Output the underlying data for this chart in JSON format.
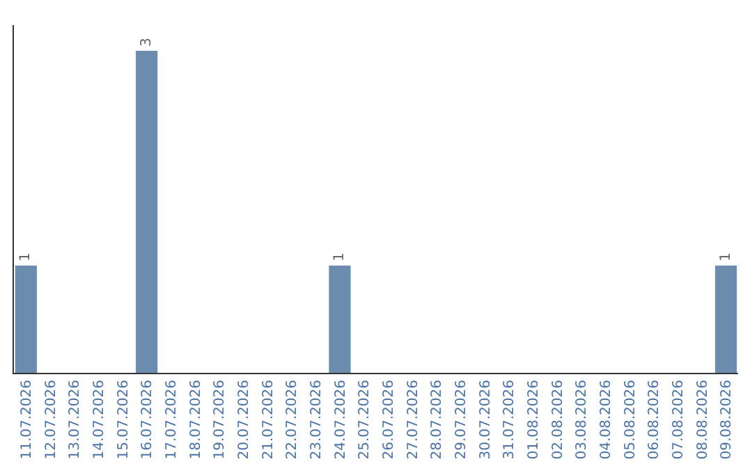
{
  "chart_data": {
    "type": "bar",
    "categories": [
      "11.07.2026",
      "12.07.2026",
      "13.07.2026",
      "14.07.2026",
      "15.07.2026",
      "16.07.2026",
      "17.07.2026",
      "18.07.2026",
      "19.07.2026",
      "20.07.2026",
      "21.07.2026",
      "22.07.2026",
      "23.07.2026",
      "24.07.2026",
      "25.07.2026",
      "26.07.2026",
      "27.07.2026",
      "28.07.2026",
      "29.07.2026",
      "30.07.2026",
      "31.07.2026",
      "01.08.2026",
      "02.08.2026",
      "03.08.2026",
      "04.08.2026",
      "05.08.2026",
      "06.08.2026",
      "07.08.2026",
      "08.08.2026",
      "09.08.2026"
    ],
    "values": [
      1,
      0,
      0,
      0,
      0,
      3,
      0,
      0,
      0,
      0,
      0,
      0,
      0,
      1,
      0,
      0,
      0,
      0,
      0,
      0,
      0,
      0,
      0,
      0,
      0,
      0,
      0,
      0,
      0,
      1
    ],
    "value_labels": [
      "1",
      null,
      null,
      null,
      null,
      "3",
      null,
      null,
      null,
      null,
      null,
      null,
      null,
      "1",
      null,
      null,
      null,
      null,
      null,
      null,
      null,
      null,
      null,
      null,
      null,
      null,
      null,
      null,
      null,
      "1"
    ],
    "color": "#6b8cad"
  }
}
